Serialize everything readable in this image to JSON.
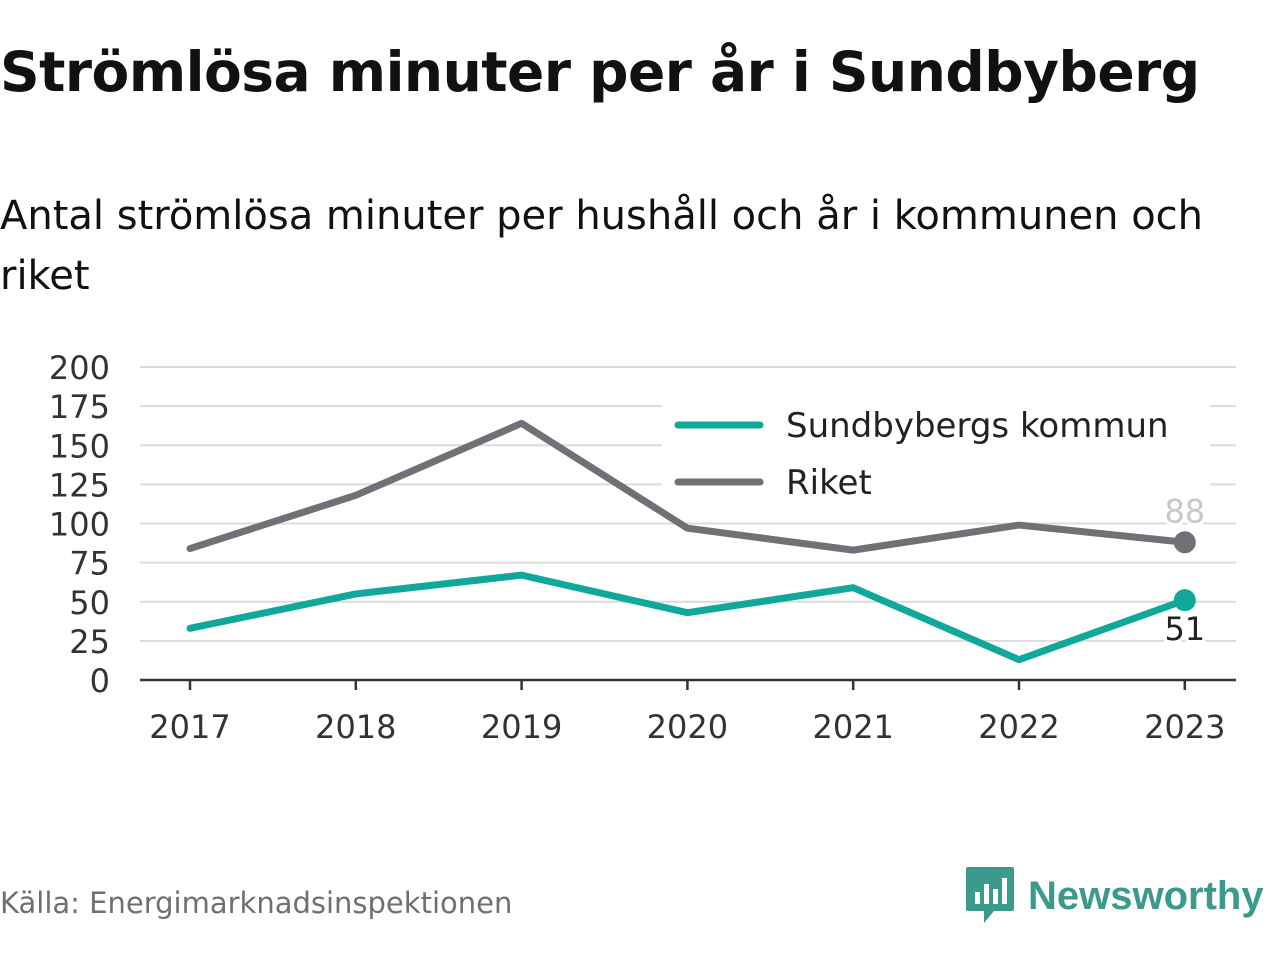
{
  "header": {
    "title": "Strömlösa minuter per år i Sundbyberg",
    "subtitle": "Antal strömlösa minuter per hushåll och år i kommunen och riket"
  },
  "footer": {
    "source": "Källa: Energimarknadsinspektionen",
    "brand": "Newsworthy",
    "brand_icon": "newsworthy-logo-icon",
    "brand_color": "#3c9a8c"
  },
  "chart_data": {
    "type": "line",
    "title": "Strömlösa minuter per år i Sundbyberg",
    "subtitle": "Antal strömlösa minuter per hushåll och år i kommunen och riket",
    "xlabel": "",
    "ylabel": "",
    "categories": [
      "2017",
      "2018",
      "2019",
      "2020",
      "2021",
      "2022",
      "2023"
    ],
    "ylim": [
      0,
      200
    ],
    "yticks": [
      0,
      25,
      50,
      75,
      100,
      125,
      150,
      175,
      200
    ],
    "grid": true,
    "legend_position": "top-right",
    "series": [
      {
        "name": "Sundbybergs kommun",
        "color": "#0fa89a",
        "values": [
          33,
          55,
          67,
          43,
          59,
          13,
          51
        ],
        "end_label": "51"
      },
      {
        "name": "Riket",
        "color": "#707076",
        "values": [
          84,
          118,
          164,
          97,
          83,
          99,
          88
        ],
        "end_label": "88"
      }
    ]
  }
}
